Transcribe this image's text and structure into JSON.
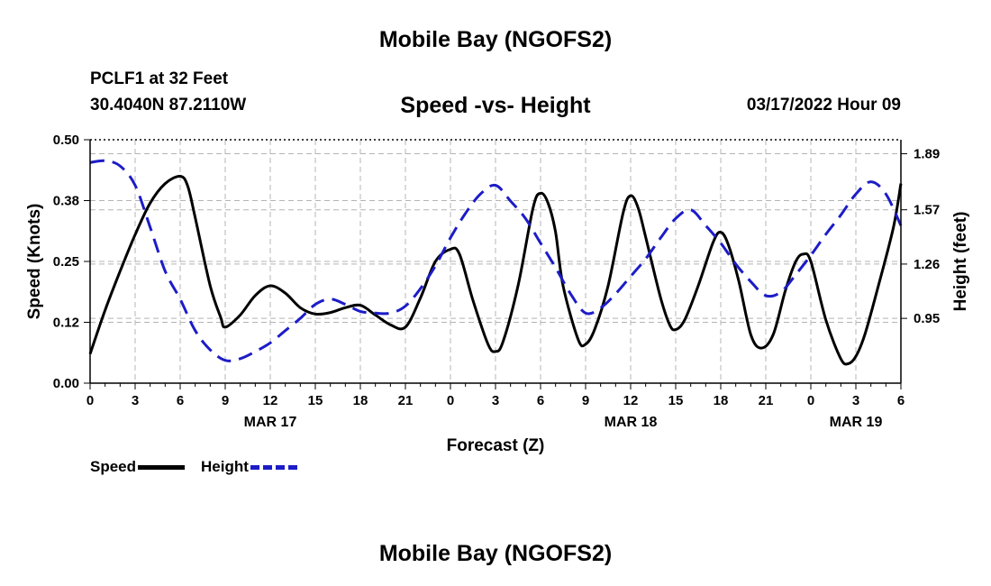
{
  "page_title": "Mobile Bay (NGOFS2)",
  "station": {
    "name": "PCLF1 at 32 Feet",
    "coords": "30.4040N  87.2110W"
  },
  "forecast_time": "03/17/2022 Hour 09",
  "footer_title": "Mobile Bay (NGOFS2)",
  "chart_data": {
    "type": "line",
    "title": "Speed -vs- Height",
    "xlabel": "Forecast (Z)",
    "ylabel_left": "Speed (Knots)",
    "ylabel_right": "Height (feet)",
    "x_ticks": [
      "0",
      "3",
      "6",
      "9",
      "12",
      "15",
      "18",
      "21",
      "0",
      "3",
      "6",
      "9",
      "12",
      "15",
      "18",
      "21",
      "0",
      "3",
      "6"
    ],
    "date_labels": [
      {
        "label": "MAR 17",
        "hour": 12
      },
      {
        "label": "MAR 18",
        "hour": 36
      },
      {
        "label": "MAR 19",
        "hour": 60
      }
    ],
    "xlim": [
      0,
      54
    ],
    "y_left": {
      "lim": [
        0,
        0.5
      ],
      "ticks": [
        "0.00",
        "0.12",
        "0.25",
        "0.38",
        "0.50"
      ],
      "tick_values": [
        0,
        0.125,
        0.25,
        0.375,
        0.5
      ]
    },
    "y_right": {
      "lim": [
        0.58,
        1.97
      ],
      "ticks": [
        "0.95",
        "1.26",
        "1.57",
        "1.89"
      ],
      "tick_values": [
        0.95,
        1.26,
        1.57,
        1.89
      ]
    },
    "grid": true,
    "legend_position": "bottom-left",
    "series": [
      {
        "name": "Speed",
        "axis": "left",
        "color": "#000000",
        "style": "solid",
        "points": [
          [
            0,
            0.06
          ],
          [
            1,
            0.15
          ],
          [
            2,
            0.23
          ],
          [
            3,
            0.305
          ],
          [
            4,
            0.37
          ],
          [
            5,
            0.41
          ],
          [
            6,
            0.425
          ],
          [
            6.5,
            0.405
          ],
          [
            7,
            0.34
          ],
          [
            8,
            0.2
          ],
          [
            8.7,
            0.135
          ],
          [
            9,
            0.115
          ],
          [
            10,
            0.14
          ],
          [
            11,
            0.18
          ],
          [
            12,
            0.2
          ],
          [
            13,
            0.185
          ],
          [
            14,
            0.155
          ],
          [
            15,
            0.142
          ],
          [
            16,
            0.145
          ],
          [
            17,
            0.155
          ],
          [
            18,
            0.16
          ],
          [
            19,
            0.14
          ],
          [
            20,
            0.12
          ],
          [
            21,
            0.115
          ],
          [
            22,
            0.175
          ],
          [
            23,
            0.25
          ],
          [
            24,
            0.275
          ],
          [
            24.6,
            0.265
          ],
          [
            25.5,
            0.17
          ],
          [
            26.5,
            0.08
          ],
          [
            27,
            0.065
          ],
          [
            27.5,
            0.085
          ],
          [
            28.5,
            0.2
          ],
          [
            29.5,
            0.36
          ],
          [
            30,
            0.39
          ],
          [
            30.5,
            0.37
          ],
          [
            31,
            0.31
          ],
          [
            31.5,
            0.2
          ],
          [
            32.5,
            0.09
          ],
          [
            33,
            0.08
          ],
          [
            33.6,
            0.11
          ],
          [
            34.5,
            0.2
          ],
          [
            35.5,
            0.35
          ],
          [
            36,
            0.385
          ],
          [
            36.5,
            0.36
          ],
          [
            37,
            0.3
          ],
          [
            38,
            0.175
          ],
          [
            38.6,
            0.12
          ],
          [
            39,
            0.11
          ],
          [
            39.6,
            0.13
          ],
          [
            40.5,
            0.2
          ],
          [
            41.5,
            0.29
          ],
          [
            42,
            0.31
          ],
          [
            42.5,
            0.285
          ],
          [
            43.2,
            0.21
          ],
          [
            44,
            0.1
          ],
          [
            44.7,
            0.072
          ],
          [
            45.5,
            0.1
          ],
          [
            46.3,
            0.19
          ],
          [
            47,
            0.25
          ],
          [
            47.5,
            0.265
          ],
          [
            48,
            0.25
          ],
          [
            49,
            0.13
          ],
          [
            50,
            0.05
          ],
          [
            50.5,
            0.04
          ],
          [
            51,
            0.055
          ],
          [
            51.6,
            0.1
          ],
          [
            52.5,
            0.2
          ],
          [
            53.5,
            0.32
          ],
          [
            54,
            0.41
          ]
        ]
      },
      {
        "name": "Height",
        "axis": "right",
        "color": "#1c1cc8",
        "style": "dashed",
        "points": [
          [
            0,
            1.84
          ],
          [
            1,
            1.85
          ],
          [
            2,
            1.82
          ],
          [
            3,
            1.71
          ],
          [
            4,
            1.47
          ],
          [
            5,
            1.22
          ],
          [
            6,
            1.06
          ],
          [
            7,
            0.88
          ],
          [
            8,
            0.77
          ],
          [
            9,
            0.71
          ],
          [
            10,
            0.72
          ],
          [
            11,
            0.76
          ],
          [
            12,
            0.81
          ],
          [
            13,
            0.88
          ],
          [
            14,
            0.95
          ],
          [
            15,
            1.03
          ],
          [
            16,
            1.06
          ],
          [
            17,
            1.03
          ],
          [
            18,
            0.99
          ],
          [
            19,
            0.98
          ],
          [
            20,
            0.98
          ],
          [
            21,
            1.02
          ],
          [
            22,
            1.12
          ],
          [
            23,
            1.25
          ],
          [
            24,
            1.41
          ],
          [
            25,
            1.55
          ],
          [
            26,
            1.66
          ],
          [
            27,
            1.71
          ],
          [
            28,
            1.62
          ],
          [
            29,
            1.52
          ],
          [
            30,
            1.38
          ],
          [
            31,
            1.24
          ],
          [
            32,
            1.09
          ],
          [
            33,
            0.98
          ],
          [
            34,
            1.01
          ],
          [
            35,
            1.09
          ],
          [
            36,
            1.19
          ],
          [
            37,
            1.29
          ],
          [
            38,
            1.41
          ],
          [
            39,
            1.52
          ],
          [
            40,
            1.57
          ],
          [
            41,
            1.48
          ],
          [
            42,
            1.38
          ],
          [
            43,
            1.26
          ],
          [
            44,
            1.16
          ],
          [
            45,
            1.08
          ],
          [
            46,
            1.1
          ],
          [
            47,
            1.2
          ],
          [
            48,
            1.31
          ],
          [
            49,
            1.43
          ],
          [
            50,
            1.54
          ],
          [
            51,
            1.66
          ],
          [
            52,
            1.73
          ],
          [
            53,
            1.66
          ],
          [
            54,
            1.48
          ]
        ]
      }
    ]
  }
}
